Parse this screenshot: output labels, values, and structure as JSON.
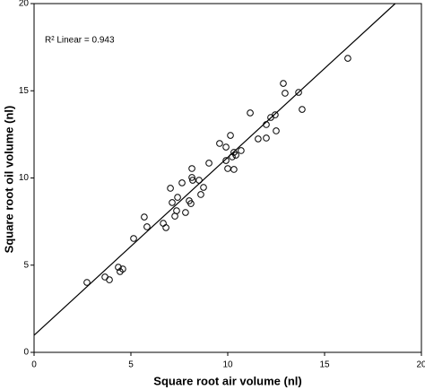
{
  "chart_data": {
    "type": "scatter",
    "xlabel": "Square root air volume (nl)",
    "ylabel": "Square root oil volume (nl)",
    "annotation": "R² Linear = 0.943",
    "x": [
      2.73,
      3.66,
      3.89,
      4.35,
      4.44,
      4.58,
      5.14,
      5.69,
      5.83,
      6.67,
      6.81,
      7.04,
      7.13,
      7.27,
      7.36,
      7.41,
      7.64,
      7.82,
      8.01,
      8.1,
      8.15,
      8.15,
      8.19,
      8.52,
      8.61,
      8.75,
      9.03,
      9.58,
      9.91,
      9.91,
      10.0,
      10.14,
      10.23,
      10.32,
      10.32,
      10.42,
      10.69,
      11.16,
      11.57,
      11.99,
      11.99,
      12.22,
      12.45,
      12.5,
      12.87,
      12.96,
      13.66,
      13.84,
      16.2
    ],
    "values": [
      4.01,
      4.32,
      4.16,
      4.88,
      4.63,
      4.78,
      6.53,
      7.76,
      7.2,
      7.4,
      7.15,
      9.41,
      8.59,
      7.81,
      8.12,
      8.89,
      9.72,
      8.02,
      8.69,
      8.53,
      10.54,
      10.03,
      9.87,
      9.87,
      9.05,
      9.46,
      10.85,
      11.98,
      11.77,
      11.0,
      10.54,
      12.44,
      11.21,
      10.49,
      11.47,
      11.31,
      11.57,
      13.73,
      12.24,
      12.29,
      13.06,
      13.47,
      13.62,
      12.7,
      15.42,
      14.86,
      14.91,
      13.93,
      16.86
    ],
    "color": "#000000",
    "fit": {
      "intercept": 0.98,
      "slope": 1.02
    },
    "xlim": [
      0,
      20
    ],
    "ylim": [
      0,
      20
    ],
    "xticks": [
      0,
      5,
      10,
      15,
      20
    ],
    "yticks": [
      0,
      5,
      10,
      15,
      20
    ],
    "grid": false
  }
}
